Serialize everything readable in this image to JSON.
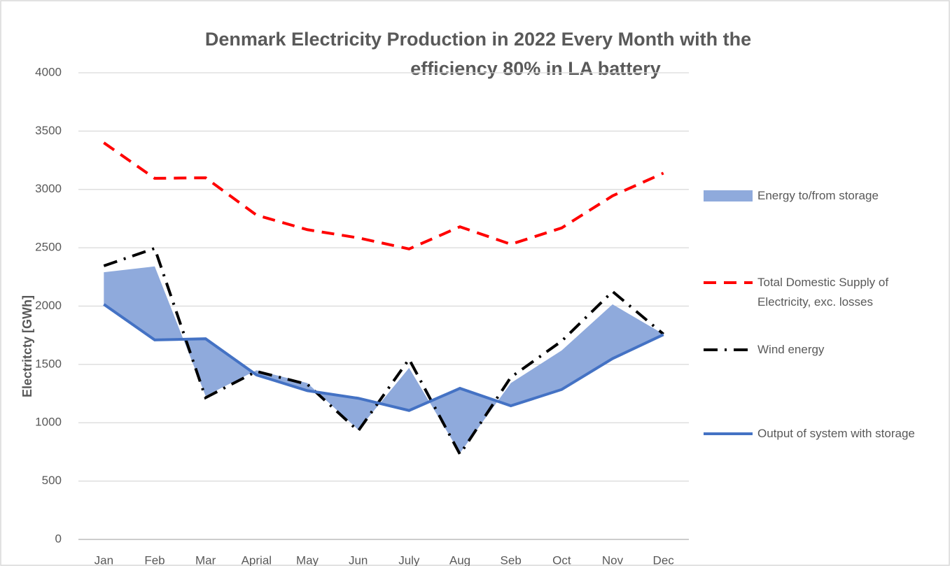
{
  "chart_data": {
    "type": "line",
    "title": [
      "Denmark Electricity Production in 2022 Every Month with the",
      "efficiency 80% in LA battery"
    ],
    "y_label": "Electritcty [GWh]",
    "categories": [
      "Jan",
      "Feb",
      "Mar",
      "Aprial",
      "May",
      "Jun",
      "July",
      "Aug",
      "Seb",
      "Oct",
      "Nov",
      "Dec"
    ],
    "ylim": [
      0,
      4000
    ],
    "yticks": [
      0,
      500,
      1000,
      1500,
      2000,
      2500,
      3000,
      3500,
      4000
    ],
    "grid": true,
    "legend": "right",
    "series": [
      {
        "name": "Energy to/from storage",
        "kind": "band",
        "band_with": "Output of system with storage",
        "color": "#8faadc",
        "values": [
          2290,
          2340,
          1230,
          1450,
          1340,
          940,
          1470,
          740,
          1340,
          1620,
          2015,
          1760
        ]
      },
      {
        "name": "Total Domestic Supply of Electricity, exc. losses",
        "kind": "dashed",
        "color": "#ff0000",
        "values": [
          3400,
          3095,
          3100,
          2780,
          2655,
          2585,
          2490,
          2680,
          2530,
          2670,
          2945,
          3140
        ]
      },
      {
        "name": "Wind energy",
        "kind": "dashdot",
        "color": "#000000",
        "values": [
          2345,
          2495,
          1215,
          1440,
          1330,
          930,
          1545,
          730,
          1390,
          1700,
          2125,
          1760
        ]
      },
      {
        "name": "Output of system with storage",
        "kind": "solid",
        "color": "#4472c4",
        "values": [
          2015,
          1710,
          1720,
          1410,
          1275,
          1210,
          1105,
          1295,
          1145,
          1285,
          1550,
          1755
        ]
      }
    ]
  }
}
